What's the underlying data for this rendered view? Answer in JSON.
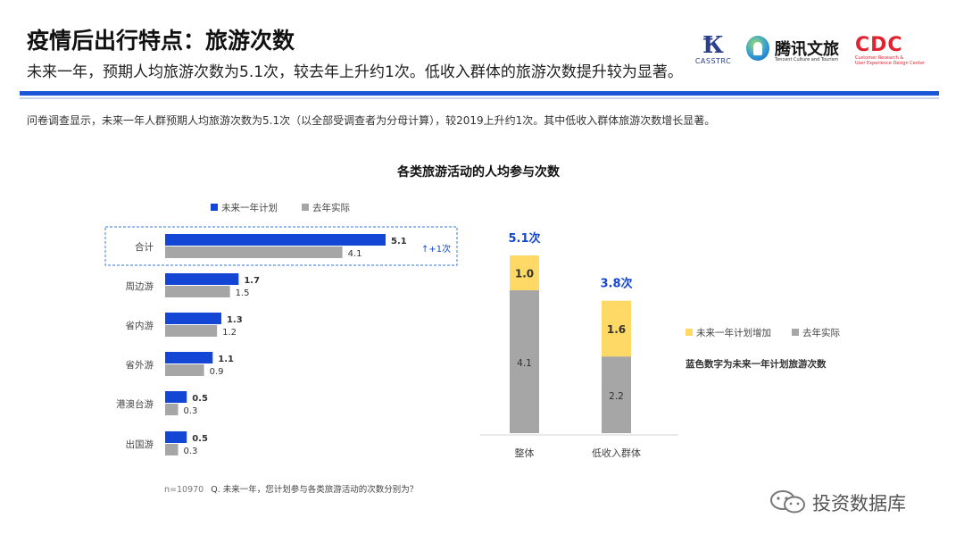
{
  "page": {
    "title": "疫情后出行特点：旅游次数",
    "subtitle": "未来一年，预期人均旅游次数为5.1次，较去年上升约1次。低收入群体的旅游次数提升较为显著。",
    "survey_note": "问卷调查显示，未来一年人群预期人均旅游次数为5.1次（以全部受调查者为分母计算），较2019上升约1次。其中低收入群体旅游次数增长显著。",
    "footnote_n": "n=10970",
    "footnote_q": "Q. 未来一年，您计划参与各类旅游活动的次数分别为？",
    "watermark": "投资数据库"
  },
  "logos": {
    "casstrc": "CASSTRC",
    "tencent": "腾讯文旅",
    "tencent_sub": "Tencent Culture and Tourism",
    "cdc": "CDC",
    "cdc_sub_1": "Customer Research &",
    "cdc_sub_2": "User Experience Design Center"
  },
  "colors": {
    "blue": "#1446d6",
    "gray": "#a6a6a6",
    "yellow": "#ffd966",
    "dashed_highlight": "#5b8fe8",
    "total_label": "#1446d6"
  },
  "chart_data": [
    {
      "type": "bar",
      "orientation": "horizontal",
      "title": "各类旅游活动的人均参与次数",
      "categories": [
        "合计",
        "周边游",
        "省内游",
        "省外游",
        "港澳台游",
        "出国游"
      ],
      "series": [
        {
          "name": "未来一年计划",
          "values": [
            5.1,
            1.7,
            1.3,
            1.1,
            0.5,
            0.5
          ]
        },
        {
          "name": "去年实际",
          "values": [
            4.1,
            1.5,
            1.2,
            0.9,
            0.3,
            0.3
          ]
        }
      ],
      "xlim": [
        0,
        5.1
      ],
      "legend_position": "top",
      "highlight_category": "合计",
      "annotation": "↑+1次"
    },
    {
      "type": "bar",
      "orientation": "vertical",
      "stacked": true,
      "categories": [
        "整体",
        "低收入群体"
      ],
      "series": [
        {
          "name": "去年实际",
          "values": [
            4.1,
            2.2
          ]
        },
        {
          "name": "未来一年计划增加",
          "values": [
            1.0,
            1.6
          ]
        }
      ],
      "totals": [
        "5.1次",
        "3.8次"
      ],
      "ylim": [
        0,
        5.1
      ],
      "legend_position": "right",
      "note": "蓝色数字为未来一年计划旅游次数"
    }
  ]
}
